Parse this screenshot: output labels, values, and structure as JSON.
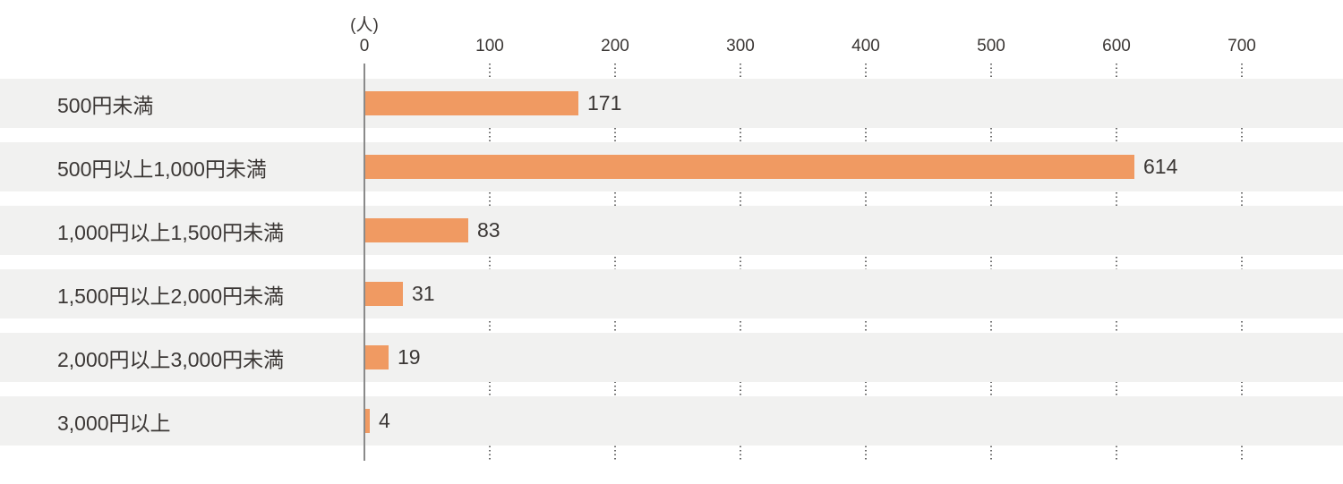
{
  "chart_data": {
    "type": "bar",
    "orientation": "horizontal",
    "title": "",
    "unit_label": "(人)",
    "categories": [
      "500円未満",
      "500円以上1,000円未満",
      "1,000円以上1,500円未満",
      "1,500円以上2,000円未満",
      "2,000円以上3,000円未満",
      "3,000円以上"
    ],
    "values": [
      171,
      614,
      83,
      31,
      19,
      4
    ],
    "xlim": [
      0,
      700
    ],
    "x_ticks": [
      "0",
      "100",
      "200",
      "300",
      "400",
      "500",
      "600",
      "700"
    ],
    "xlabel": "(人)",
    "legend": "none",
    "grid": "dotted-vertical",
    "colors": {
      "bar": "#F09A62",
      "row_band": "#F1F1F0",
      "text": "#3B3735",
      "axis_line": "#8A8A8A",
      "grid_dots": "#6E6E6E",
      "background": "#FFFFFF"
    }
  }
}
